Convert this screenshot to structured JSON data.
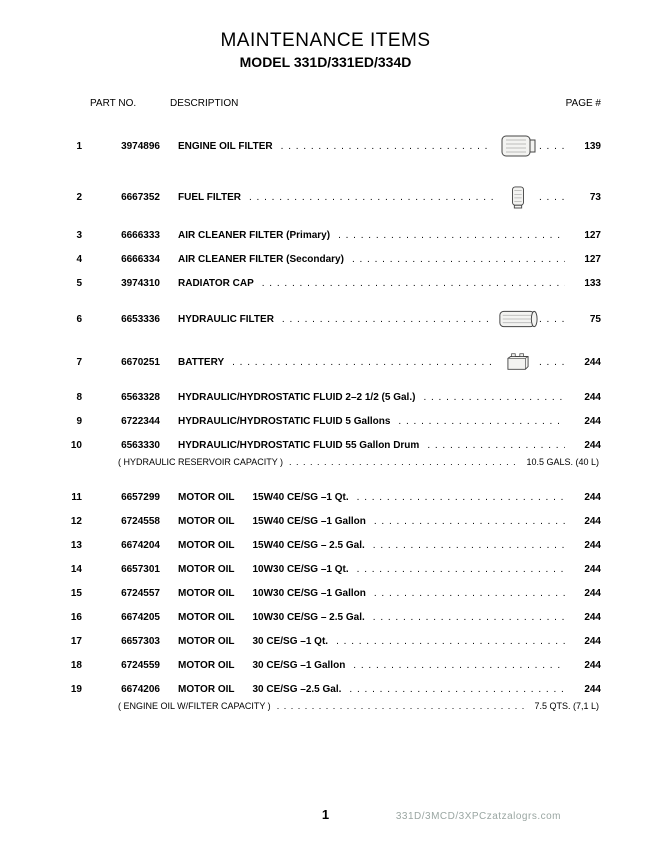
{
  "title": "MAINTENANCE ITEMS",
  "subtitle": "MODEL 331D/331ED/334D",
  "headers": {
    "part": "PART NO.",
    "desc": "DESCRIPTION",
    "page": "PAGE #"
  },
  "page_number": "1",
  "footer_right": "331D/3MCD/3XPCzatzalogrs.com",
  "notes": {
    "hyd": {
      "label": "( HYDRAULIC RESERVOIR CAPACITY )",
      "value": "10.5 GALS. (40  L)"
    },
    "oil": {
      "label": "( ENGINE OIL W/FILTER CAPACITY )",
      "value": "7.5 QTS. (7,1 L)"
    }
  },
  "items": [
    {
      "idx": "1",
      "part": "3974896",
      "desc": "ENGINE OIL FILTER",
      "icon": "oilfilter",
      "page": "139"
    },
    {
      "idx": "2",
      "part": "6667352",
      "desc": "FUEL FILTER",
      "icon": "fuelfilter",
      "page": "73"
    },
    {
      "idx": "3",
      "part": "6666333",
      "desc": "AIR CLEANER FILTER (Primary)",
      "icon": null,
      "page": "127"
    },
    {
      "idx": "4",
      "part": "6666334",
      "desc": "AIR CLEANER FILTER (Secondary)",
      "icon": null,
      "page": "127"
    },
    {
      "idx": "5",
      "part": "3974310",
      "desc": "RADIATOR CAP",
      "icon": null,
      "page": "133"
    },
    {
      "idx": "6",
      "part": "6653336",
      "desc": "HYDRAULIC FILTER",
      "icon": "hydfilter",
      "page": "75"
    },
    {
      "idx": "7",
      "part": "6670251",
      "desc": "BATTERY",
      "icon": "battery",
      "page": "244"
    },
    {
      "idx": "8",
      "part": "6563328",
      "desc": "HYDRAULIC/HYDROSTATIC FLUID 2–2 1/2 (5 Gal.)",
      "icon": null,
      "page": "244"
    },
    {
      "idx": "9",
      "part": "6722344",
      "desc": "HYDRAULIC/HYDROSTATIC FLUID 5 Gallons",
      "icon": null,
      "page": "244"
    },
    {
      "idx": "10",
      "part": "6563330",
      "desc": "HYDRAULIC/HYDROSTATIC FLUID 55 Gallon Drum",
      "icon": null,
      "page": "244"
    },
    {
      "idx": "11",
      "part": "6657299",
      "desc": "MOTOR OIL",
      "spec": "15W40 CE/SG –1 Qt.",
      "icon": null,
      "page": "244"
    },
    {
      "idx": "12",
      "part": "6724558",
      "desc": "MOTOR OIL",
      "spec": "15W40 CE/SG –1 Gallon",
      "icon": null,
      "page": "244"
    },
    {
      "idx": "13",
      "part": "6674204",
      "desc": "MOTOR OIL",
      "spec": "15W40 CE/SG – 2.5 Gal.",
      "icon": null,
      "page": "244"
    },
    {
      "idx": "14",
      "part": "6657301",
      "desc": "MOTOR OIL",
      "spec": "10W30 CE/SG –1 Qt.",
      "icon": null,
      "page": "244"
    },
    {
      "idx": "15",
      "part": "6724557",
      "desc": "MOTOR OIL",
      "spec": "10W30 CE/SG –1 Gallon",
      "icon": null,
      "page": "244"
    },
    {
      "idx": "16",
      "part": "6674205",
      "desc": "MOTOR OIL",
      "spec": "10W30 CE/SG – 2.5 Gal.",
      "icon": null,
      "page": "244"
    },
    {
      "idx": "17",
      "part": "6657303",
      "desc": "MOTOR OIL",
      "spec": "30 CE/SG –1 Qt.",
      "icon": null,
      "page": "244"
    },
    {
      "idx": "18",
      "part": "6724559",
      "desc": "MOTOR OIL",
      "spec": "30 CE/SG –1 Gallon",
      "icon": null,
      "page": "244"
    },
    {
      "idx": "19",
      "part": "6674206",
      "desc": "MOTOR OIL",
      "spec": "30 CE/SG –2.5 Gal.",
      "icon": null,
      "page": "244"
    }
  ],
  "colors": {
    "text": "#000000",
    "bg": "#ffffff",
    "footer": "#9aa6a2",
    "icon_stroke": "#444444",
    "icon_fill": "#f3f3f1"
  },
  "fonts": {
    "title_size": 19,
    "subtitle_size": 14,
    "body_size": 10,
    "note_size": 9
  }
}
